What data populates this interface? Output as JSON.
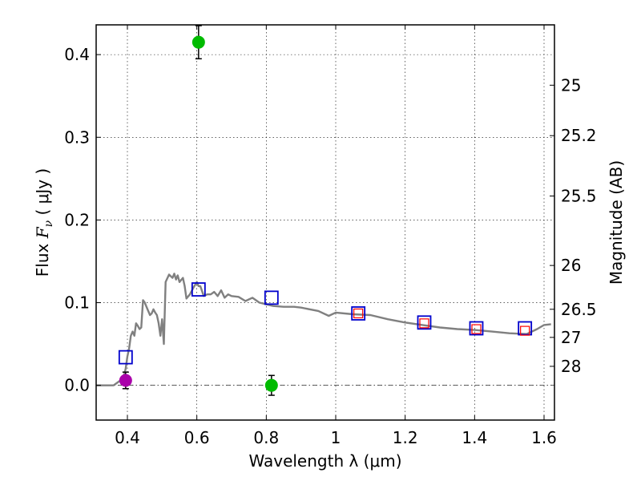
{
  "chart_data": {
    "type": "scatter",
    "xlabel": "Wavelength  λ (μm)",
    "ylabel": "Flux  Fν  ( μJy )",
    "ylabel_parts": {
      "prefix": "Flux  ",
      "symbol": "F",
      "subscript": "ν",
      "suffix": "  ( μJy )"
    },
    "ylabel_right": "Magnitude (AB)",
    "xlim": [
      0.31,
      1.63
    ],
    "ylim": [
      -0.042,
      0.436
    ],
    "grid": true,
    "x_ticks": [
      0.4,
      0.6,
      0.8,
      1.0,
      1.2,
      1.4,
      1.6
    ],
    "x_tick_labels": [
      "0.4",
      "0.6",
      "0.8",
      "1",
      "1.2",
      "1.4",
      "1.6"
    ],
    "y_ticks": [
      0.0,
      0.1,
      0.2,
      0.3,
      0.4
    ],
    "y_tick_labels": [
      "0.0",
      "0.1",
      "0.2",
      "0.3",
      "0.4"
    ],
    "right_ticks": [
      {
        "label": "25",
        "flux": 0.363
      },
      {
        "label": "25.2",
        "flux": 0.302
      },
      {
        "label": "25.5",
        "flux": 0.229
      },
      {
        "label": "26",
        "flux": 0.145
      },
      {
        "label": "26.5",
        "flux": 0.092
      },
      {
        "label": "27",
        "flux": 0.058
      },
      {
        "label": "28",
        "flux": 0.023
      }
    ],
    "zero_line": 0.0,
    "series": [
      {
        "name": "model SED",
        "kind": "line",
        "color": "#808080",
        "x": [
          0.31,
          0.36,
          0.37,
          0.38,
          0.385,
          0.39,
          0.395,
          0.4,
          0.405,
          0.41,
          0.415,
          0.42,
          0.425,
          0.43,
          0.435,
          0.44,
          0.445,
          0.45,
          0.455,
          0.46,
          0.465,
          0.47,
          0.475,
          0.48,
          0.485,
          0.49,
          0.495,
          0.5,
          0.505,
          0.51,
          0.52,
          0.53,
          0.535,
          0.54,
          0.545,
          0.55,
          0.56,
          0.565,
          0.57,
          0.58,
          0.59,
          0.6,
          0.605,
          0.61,
          0.62,
          0.63,
          0.64,
          0.65,
          0.66,
          0.67,
          0.68,
          0.69,
          0.7,
          0.72,
          0.74,
          0.76,
          0.78,
          0.8,
          0.82,
          0.85,
          0.88,
          0.9,
          0.95,
          0.98,
          1.0,
          1.05,
          1.1,
          1.15,
          1.2,
          1.25,
          1.3,
          1.35,
          1.4,
          1.45,
          1.5,
          1.55,
          1.58,
          1.6,
          1.62
        ],
        "y": [
          0.0,
          0.0,
          0.003,
          0.006,
          0.01,
          0.012,
          0.02,
          0.035,
          0.045,
          0.06,
          0.065,
          0.06,
          0.075,
          0.072,
          0.068,
          0.07,
          0.103,
          0.1,
          0.095,
          0.09,
          0.085,
          0.087,
          0.092,
          0.088,
          0.085,
          0.075,
          0.06,
          0.08,
          0.05,
          0.125,
          0.134,
          0.13,
          0.135,
          0.128,
          0.133,
          0.125,
          0.13,
          0.12,
          0.105,
          0.11,
          0.118,
          0.125,
          0.12,
          0.12,
          0.108,
          0.11,
          0.11,
          0.113,
          0.108,
          0.115,
          0.106,
          0.11,
          0.108,
          0.107,
          0.102,
          0.106,
          0.1,
          0.098,
          0.096,
          0.095,
          0.095,
          0.094,
          0.09,
          0.084,
          0.088,
          0.086,
          0.085,
          0.08,
          0.076,
          0.073,
          0.07,
          0.068,
          0.067,
          0.065,
          0.063,
          0.062,
          0.068,
          0.073,
          0.074
        ]
      },
      {
        "name": "model photometry",
        "kind": "square",
        "color": "#0000cc",
        "x": [
          0.395,
          0.605,
          0.815,
          1.065,
          1.255,
          1.405,
          1.545
        ],
        "y": [
          0.034,
          0.116,
          0.106,
          0.087,
          0.076,
          0.069,
          0.069
        ]
      },
      {
        "name": "observed (small squares)",
        "kind": "square-small",
        "color": "#ff0000",
        "x": [
          1.065,
          1.255,
          1.405,
          1.545
        ],
        "y": [
          0.087,
          0.075,
          0.068,
          0.066
        ]
      },
      {
        "name": "green detections",
        "kind": "circle",
        "color": "#00bb00",
        "x": [
          0.605,
          0.815
        ],
        "y": [
          0.415,
          0.0
        ],
        "err": [
          0.02,
          0.012
        ]
      },
      {
        "name": "magenta detection",
        "kind": "circle",
        "color": "#aa00aa",
        "x": [
          0.395
        ],
        "y": [
          0.006
        ],
        "err": [
          0.01
        ]
      }
    ]
  }
}
